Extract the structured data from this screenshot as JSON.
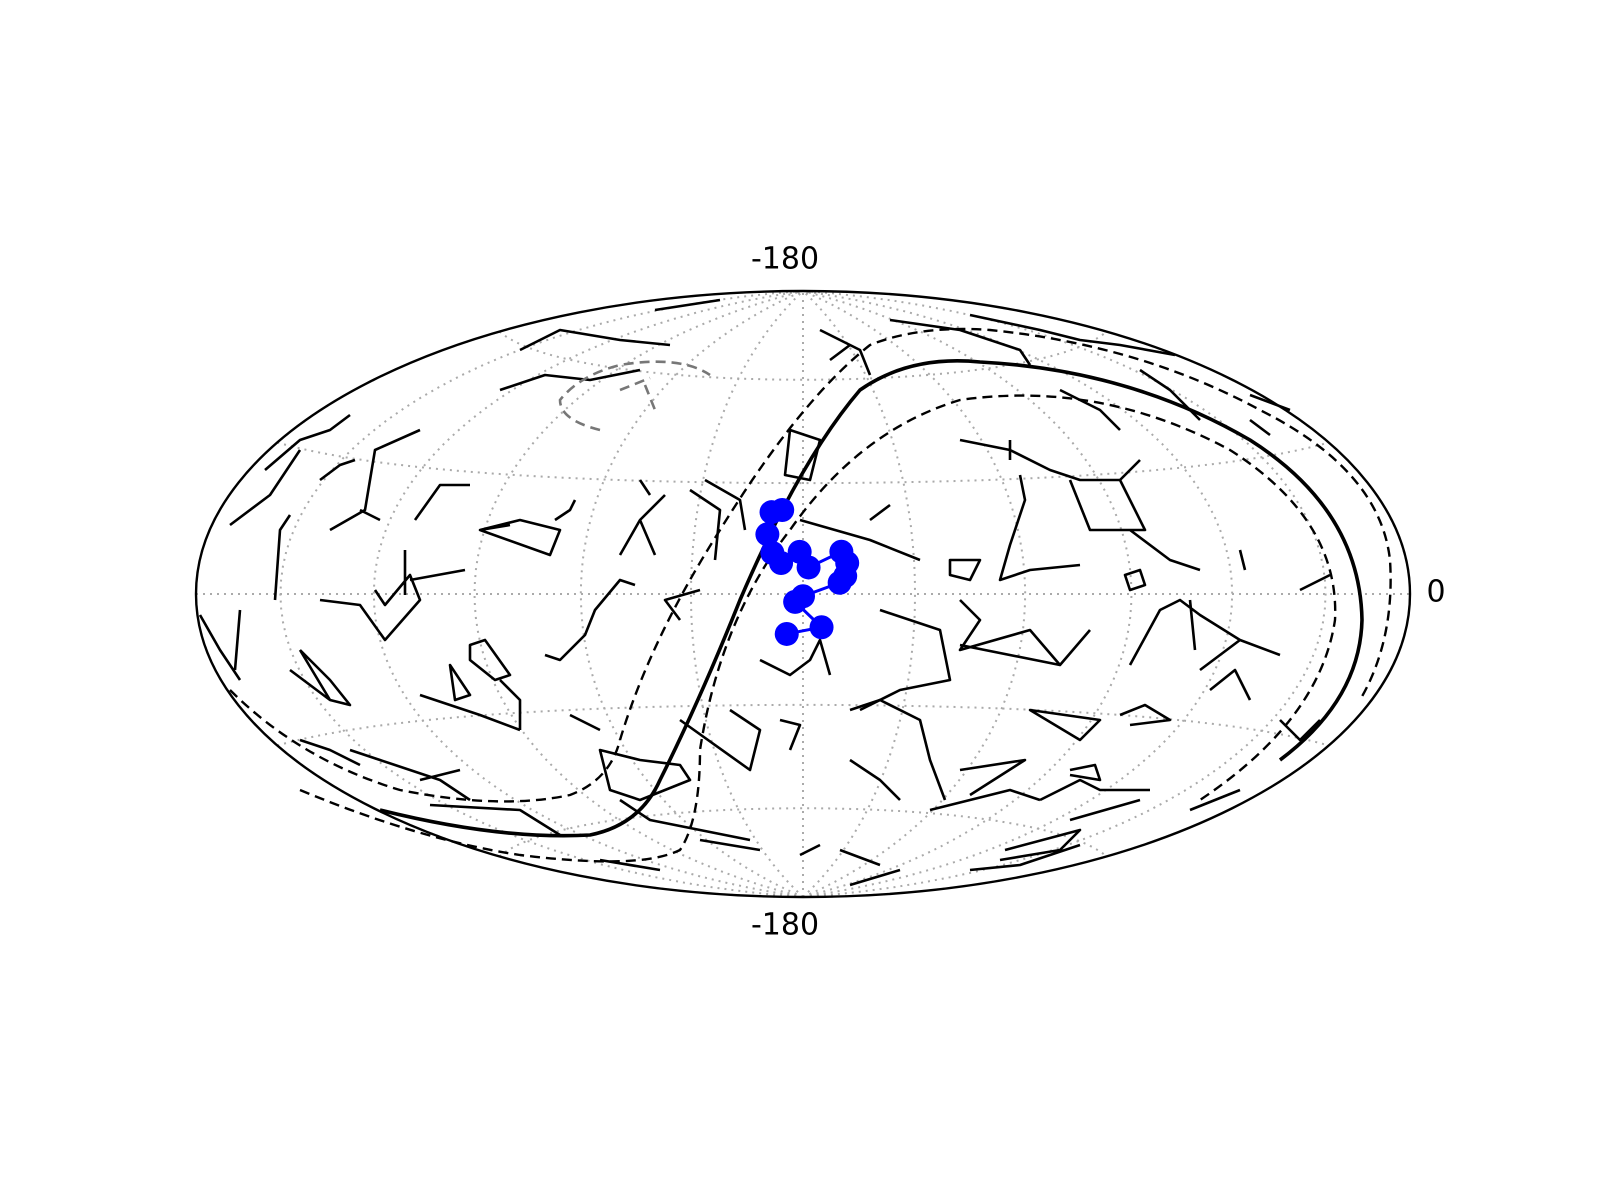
{
  "map": {
    "labels": {
      "top": "-180",
      "bottom": "-180",
      "right": "0"
    },
    "points": [
      {
        "lon": -5.9,
        "lat": 22.6
      },
      {
        "lon": -8.9,
        "lat": 22.0
      },
      {
        "lon": -9.8,
        "lat": 16.0
      },
      {
        "lon": -8.3,
        "lat": 11.0
      },
      {
        "lon": -5.9,
        "lat": 8.3
      },
      {
        "lon": -0.9,
        "lat": 11.3
      },
      {
        "lon": 1.5,
        "lat": 7.1
      },
      {
        "lon": 10.4,
        "lat": 11.3
      },
      {
        "lon": 11.9,
        "lat": 8.3
      },
      {
        "lon": 11.3,
        "lat": 4.8
      },
      {
        "lon": 9.8,
        "lat": 3.0
      },
      {
        "lon": 0.0,
        "lat": -0.6
      },
      {
        "lon": -2.1,
        "lat": -2.1
      },
      {
        "lon": 5.0,
        "lat": -8.9
      },
      {
        "lon": -4.4,
        "lat": -10.7
      }
    ],
    "point_color": "#0000ff"
  }
}
